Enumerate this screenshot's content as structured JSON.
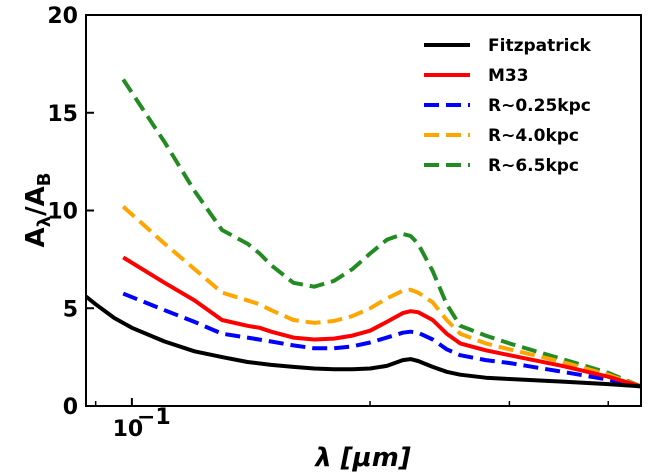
{
  "chart_data": {
    "type": "line",
    "xlabel": "λ [μm]",
    "ylabel": "A_λ/A_B",
    "xscale": "log",
    "xlim": [
      0.0875,
      0.44
    ],
    "ylim": [
      0,
      20
    ],
    "yticks": [
      0,
      5,
      10,
      15,
      20
    ],
    "xtick_label": "10",
    "xtick_exponent": "−1",
    "grid": false,
    "legend_position": "top-right",
    "series": [
      {
        "name": "Fitzpatrick",
        "color": "#000000",
        "dash": "solid",
        "points": [
          [
            0.0875,
            5.6
          ],
          [
            0.09,
            5.2
          ],
          [
            0.095,
            4.5
          ],
          [
            0.1,
            4.0
          ],
          [
            0.11,
            3.3
          ],
          [
            0.12,
            2.8
          ],
          [
            0.13,
            2.5
          ],
          [
            0.14,
            2.25
          ],
          [
            0.15,
            2.1
          ],
          [
            0.16,
            2.0
          ],
          [
            0.17,
            1.92
          ],
          [
            0.18,
            1.88
          ],
          [
            0.19,
            1.88
          ],
          [
            0.2,
            1.92
          ],
          [
            0.21,
            2.05
          ],
          [
            0.215,
            2.2
          ],
          [
            0.22,
            2.35
          ],
          [
            0.225,
            2.4
          ],
          [
            0.23,
            2.3
          ],
          [
            0.24,
            2.0
          ],
          [
            0.25,
            1.75
          ],
          [
            0.26,
            1.6
          ],
          [
            0.28,
            1.45
          ],
          [
            0.3,
            1.38
          ],
          [
            0.35,
            1.25
          ],
          [
            0.4,
            1.12
          ],
          [
            0.44,
            1.0
          ]
        ]
      },
      {
        "name": "M33",
        "color": "#ff0000",
        "dash": "solid",
        "points": [
          [
            0.0975,
            7.6
          ],
          [
            0.11,
            6.3
          ],
          [
            0.12,
            5.4
          ],
          [
            0.13,
            4.4
          ],
          [
            0.14,
            4.1
          ],
          [
            0.145,
            4.0
          ],
          [
            0.15,
            3.8
          ],
          [
            0.16,
            3.5
          ],
          [
            0.17,
            3.4
          ],
          [
            0.18,
            3.45
          ],
          [
            0.19,
            3.6
          ],
          [
            0.2,
            3.85
          ],
          [
            0.21,
            4.3
          ],
          [
            0.22,
            4.75
          ],
          [
            0.225,
            4.85
          ],
          [
            0.23,
            4.8
          ],
          [
            0.24,
            4.4
          ],
          [
            0.25,
            3.7
          ],
          [
            0.26,
            3.2
          ],
          [
            0.28,
            2.85
          ],
          [
            0.3,
            2.6
          ],
          [
            0.35,
            2.05
          ],
          [
            0.4,
            1.5
          ],
          [
            0.44,
            1.0
          ]
        ]
      },
      {
        "name": "R~0.25kpc",
        "color": "#0000ff",
        "dash": "dashed",
        "points": [
          [
            0.0975,
            5.75
          ],
          [
            0.11,
            4.9
          ],
          [
            0.12,
            4.3
          ],
          [
            0.13,
            3.7
          ],
          [
            0.14,
            3.5
          ],
          [
            0.15,
            3.3
          ],
          [
            0.16,
            3.1
          ],
          [
            0.17,
            2.95
          ],
          [
            0.18,
            2.95
          ],
          [
            0.19,
            3.05
          ],
          [
            0.2,
            3.25
          ],
          [
            0.21,
            3.5
          ],
          [
            0.22,
            3.75
          ],
          [
            0.225,
            3.8
          ],
          [
            0.23,
            3.75
          ],
          [
            0.24,
            3.4
          ],
          [
            0.25,
            2.9
          ],
          [
            0.26,
            2.6
          ],
          [
            0.28,
            2.35
          ],
          [
            0.3,
            2.2
          ],
          [
            0.35,
            1.75
          ],
          [
            0.4,
            1.35
          ],
          [
            0.44,
            1.0
          ]
        ]
      },
      {
        "name": "R~4.0kpc",
        "color": "#ffa500",
        "dash": "dashed",
        "points": [
          [
            0.0975,
            10.2
          ],
          [
            0.11,
            8.3
          ],
          [
            0.12,
            7.0
          ],
          [
            0.13,
            5.8
          ],
          [
            0.14,
            5.4
          ],
          [
            0.145,
            5.2
          ],
          [
            0.15,
            4.9
          ],
          [
            0.16,
            4.4
          ],
          [
            0.17,
            4.25
          ],
          [
            0.18,
            4.35
          ],
          [
            0.19,
            4.6
          ],
          [
            0.2,
            5.0
          ],
          [
            0.21,
            5.5
          ],
          [
            0.22,
            5.9
          ],
          [
            0.225,
            5.95
          ],
          [
            0.23,
            5.8
          ],
          [
            0.24,
            5.3
          ],
          [
            0.25,
            4.4
          ],
          [
            0.26,
            3.7
          ],
          [
            0.28,
            3.2
          ],
          [
            0.3,
            2.9
          ],
          [
            0.35,
            2.25
          ],
          [
            0.4,
            1.6
          ],
          [
            0.44,
            1.0
          ]
        ]
      },
      {
        "name": "R~6.5kpc",
        "color": "#228b22",
        "dash": "dashed",
        "points": [
          [
            0.0975,
            16.7
          ],
          [
            0.11,
            13.5
          ],
          [
            0.12,
            11.0
          ],
          [
            0.13,
            9.0
          ],
          [
            0.14,
            8.3
          ],
          [
            0.145,
            7.8
          ],
          [
            0.15,
            7.2
          ],
          [
            0.16,
            6.3
          ],
          [
            0.17,
            6.1
          ],
          [
            0.18,
            6.4
          ],
          [
            0.19,
            7.0
          ],
          [
            0.2,
            7.8
          ],
          [
            0.21,
            8.5
          ],
          [
            0.22,
            8.8
          ],
          [
            0.225,
            8.7
          ],
          [
            0.23,
            8.3
          ],
          [
            0.24,
            6.9
          ],
          [
            0.25,
            5.2
          ],
          [
            0.26,
            4.1
          ],
          [
            0.28,
            3.6
          ],
          [
            0.3,
            3.2
          ],
          [
            0.35,
            2.4
          ],
          [
            0.4,
            1.7
          ],
          [
            0.44,
            1.0
          ]
        ]
      }
    ]
  }
}
